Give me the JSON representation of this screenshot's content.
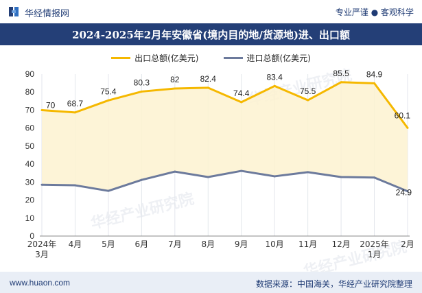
{
  "header": {
    "brand": "华经情报网",
    "tagline": "专业严谨 ● 客观科学"
  },
  "title": "2024-2025年2月年安徽省(境内目的地/货源地)进、出口额",
  "legend": {
    "export_label": "出口总额(亿美元)",
    "import_label": "进口总额(亿美元)"
  },
  "footer": {
    "url": "www.huaon.com",
    "source": "数据来源：中国海关，华经产业研究院整理"
  },
  "watermark": "华经产业研究院",
  "colors": {
    "export": "#f5b800",
    "export_fill": "#fdf2d0",
    "import": "#6c7a9c",
    "title_bg": "#243f77",
    "footer_bg": "#e9eef6"
  },
  "chart_data": {
    "type": "line",
    "categories": [
      "2024年3月",
      "4月",
      "5月",
      "6月",
      "7月",
      "8月",
      "9月",
      "10月",
      "11月",
      "12月",
      "2025年1月",
      "2月"
    ],
    "series": [
      {
        "name": "出口总额(亿美元)",
        "values": [
          70,
          68.7,
          75.4,
          80.3,
          82,
          82.4,
          74.4,
          83.4,
          75.5,
          85.5,
          84.9,
          60.1
        ],
        "labels": [
          "70",
          "68.7",
          "75.4",
          "80.3",
          "82",
          "82.4",
          "74.4",
          "83.4",
          "75.5",
          "85.5",
          "84.9",
          "60.1"
        ]
      },
      {
        "name": "进口总额(亿美元)",
        "values": [
          28.5,
          28.2,
          25.1,
          31.2,
          35.8,
          32.8,
          36.2,
          33.2,
          35.5,
          32.8,
          32.5,
          24.9
        ],
        "labels": [
          "",
          "",
          "",
          "",
          "",
          "",
          "",
          "",
          "",
          "",
          "",
          "24.9"
        ]
      }
    ],
    "ylim": [
      0,
      90
    ],
    "yticks": [
      0,
      10,
      20,
      30,
      40,
      50,
      60,
      70,
      80,
      90
    ],
    "grid": "vertical",
    "legend_position": "top-center"
  }
}
